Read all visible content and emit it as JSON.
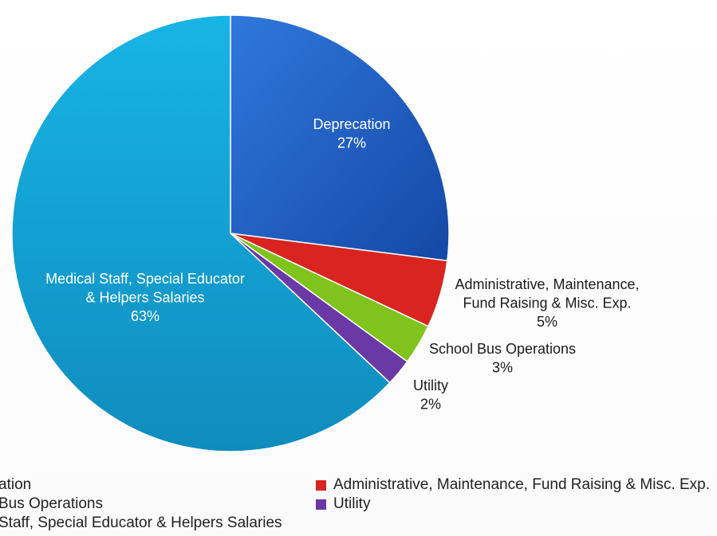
{
  "chart_data": {
    "type": "pie",
    "slices": [
      {
        "name": "Deprecation",
        "label_lines": [
          "Deprecation",
          "27%"
        ],
        "value": 27,
        "color": "#1f63c6",
        "label_color": "#ffffff"
      },
      {
        "name": "Administrative, Maintenance, Fund Raising & Misc. Exp.",
        "label_lines": [
          "Administrative, Maintenance,",
          "Fund Raising & Misc. Exp.",
          "5%"
        ],
        "value": 5,
        "color": "#d9241f",
        "label_color": "#1a1a1a"
      },
      {
        "name": "School Bus Operations",
        "label_lines": [
          "School Bus Operations",
          "3%"
        ],
        "value": 3,
        "color": "#7fc31c",
        "label_color": "#1a1a1a"
      },
      {
        "name": "Utility",
        "label_lines": [
          "Utility",
          "2%"
        ],
        "value": 2,
        "color": "#6a39a6",
        "label_color": "#1a1a1a"
      },
      {
        "name": "Medical Staff, Special Educator & Helpers Salaries",
        "label_lines": [
          "Medical Staff, Special Educator",
          "& Helpers Salaries",
          "63%"
        ],
        "value": 63,
        "color": "#14a8d8",
        "label_color": "#ffffff"
      }
    ],
    "legend_placement": "bottom"
  },
  "legend": {
    "left_column": [
      "ation",
      "Bus Operations",
      "Staff, Special Educator & Helpers Salaries"
    ],
    "right_column": [
      "Administrative, Maintenance, Fund Raising & Misc. Exp.",
      "Utility"
    ]
  }
}
